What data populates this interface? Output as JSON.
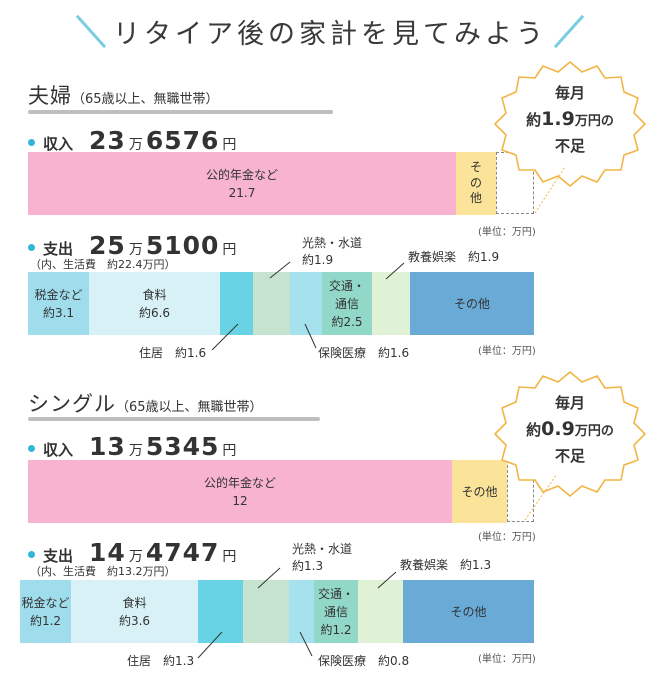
{
  "title": "リタイア後の家計を見てみよう",
  "unit_note": "(単位：万円)",
  "sections": [
    {
      "name": "夫婦",
      "qualifier": "（65歳以上、無職世帯）",
      "income": {
        "label": "収入",
        "man": "23",
        "yen": "6576",
        "bar": [
          {
            "label": "公的年金など",
            "value": "21.7"
          },
          {
            "label": "その他",
            "value": ""
          }
        ]
      },
      "expense": {
        "label": "支出",
        "man": "25",
        "yen": "5100",
        "note": "（内、生活費　約22.4万円）",
        "segments": [
          {
            "label": "税金など",
            "value": "約3.1"
          },
          {
            "label": "食料",
            "value": "約6.6"
          },
          {
            "label": "住居",
            "value": "約1.6"
          },
          {
            "label": "光熱・水道",
            "value": "約1.9"
          },
          {
            "label": "保険医療",
            "value": "約1.6"
          },
          {
            "label": "交通・\n通信",
            "value": "約2.5"
          },
          {
            "label": "教養娯楽",
            "value": "約1.9"
          },
          {
            "label": "その他",
            "value": ""
          }
        ]
      },
      "shortfall": {
        "line1": "毎月",
        "prefix": "約",
        "amount": "1.9",
        "unit": "万円の",
        "line3": "不足"
      }
    },
    {
      "name": "シングル",
      "qualifier": "（65歳以上、無職世帯）",
      "income": {
        "label": "収入",
        "man": "13",
        "yen": "5345",
        "bar": [
          {
            "label": "公的年金など",
            "value": "12"
          },
          {
            "label": "その他",
            "value": ""
          }
        ]
      },
      "expense": {
        "label": "支出",
        "man": "14",
        "yen": "4747",
        "note": "（内、生活費　約13.2万円）",
        "segments": [
          {
            "label": "税金など",
            "value": "約1.2"
          },
          {
            "label": "食料",
            "value": "約3.6"
          },
          {
            "label": "住居",
            "value": "約1.3"
          },
          {
            "label": "光熱・水道",
            "value": "約1.3"
          },
          {
            "label": "保険医療",
            "value": "約0.8"
          },
          {
            "label": "交通・\n通信",
            "value": "約1.2"
          },
          {
            "label": "教養娯楽",
            "value": "約1.3"
          },
          {
            "label": "その他",
            "value": ""
          }
        ]
      },
      "shortfall": {
        "line1": "毎月",
        "prefix": "約",
        "amount": "0.9",
        "unit": "万円の",
        "line3": "不足"
      }
    }
  ],
  "labels": {
    "man_unit": "万",
    "yen_unit": "円"
  },
  "colors": {
    "pension": "#f7b3cf",
    "income_other": "#fbe49a",
    "tax": "#9fdcec",
    "food": "#d8f1f6",
    "housing": "#67d3e4",
    "utilities": "#c6e3cf",
    "medical": "#a5e2ee",
    "transport": "#92d8c8",
    "leisure": "#e0f2d6",
    "other": "#6aaad6",
    "accent": "#2fb6d8",
    "callout_stroke": "#f2b545"
  }
}
